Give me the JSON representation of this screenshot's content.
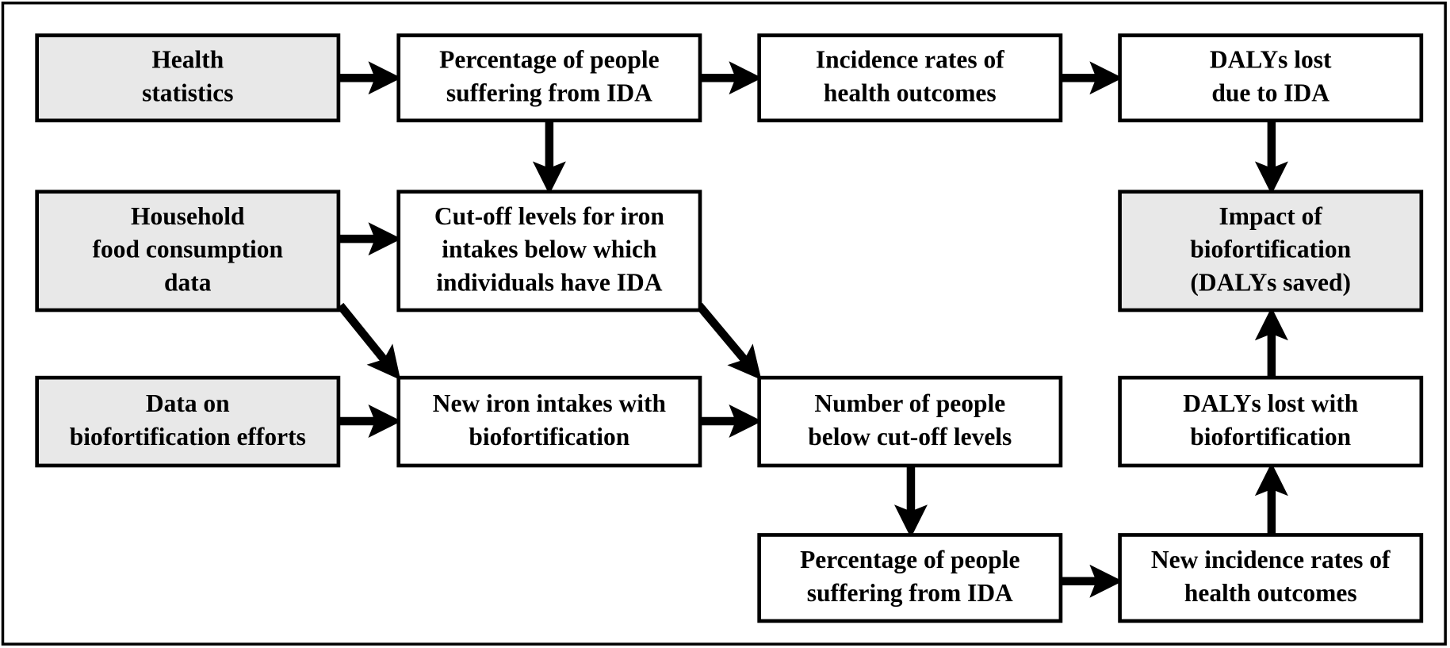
{
  "nodes": [
    {
      "lines": [
        "Health",
        "statistics"
      ]
    },
    {
      "lines": [
        "Percentage of people",
        "suffering from IDA"
      ]
    },
    {
      "lines": [
        "Incidence rates of",
        "health outcomes"
      ]
    },
    {
      "lines": [
        "DALYs lost",
        "due to IDA"
      ]
    },
    {
      "lines": [
        "Household",
        "food consumption",
        "data"
      ]
    },
    {
      "lines": [
        "Cut-off levels for iron",
        "intakes below which",
        "individuals have IDA"
      ]
    },
    {
      "lines": [
        "Impact of",
        "biofortification",
        "(DALYs saved)"
      ]
    },
    {
      "lines": [
        "Data on",
        "biofortification efforts"
      ]
    },
    {
      "lines": [
        "New iron intakes with",
        "biofortification"
      ]
    },
    {
      "lines": [
        "Number of people",
        "below cut-off levels"
      ]
    },
    {
      "lines": [
        "DALYs lost with",
        "biofortification"
      ]
    },
    {
      "lines": [
        "Percentage of people",
        "suffering from IDA"
      ]
    },
    {
      "lines": [
        "New incidence rates of",
        "health outcomes"
      ]
    }
  ]
}
